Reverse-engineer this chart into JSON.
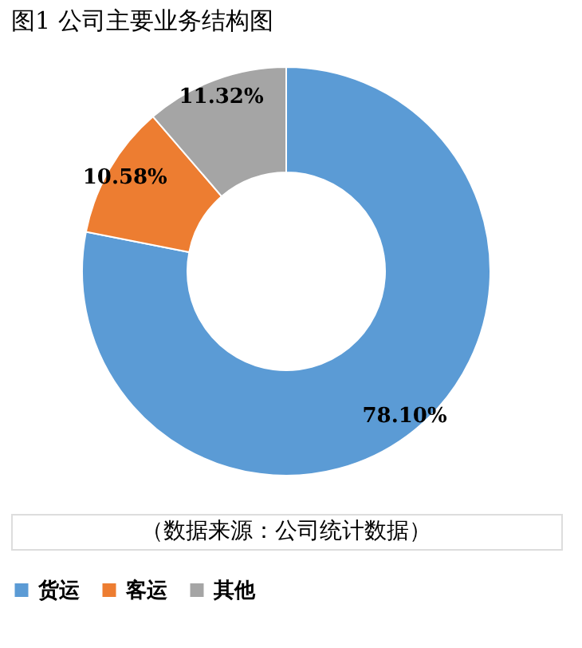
{
  "chart_data": {
    "type": "donut",
    "title": "图1  公司主要业务结构图",
    "categories": [
      "货运",
      "客运",
      "其他"
    ],
    "values": [
      78.1,
      10.58,
      11.32
    ],
    "colors": [
      "#5b9bd5",
      "#ed7d31",
      "#a5a5a5"
    ],
    "value_labels": [
      "78.10%",
      "10.58%",
      "11.32%"
    ],
    "legend": "bottom",
    "annotations": [
      "（数据来源：公司统计数据）"
    ]
  }
}
